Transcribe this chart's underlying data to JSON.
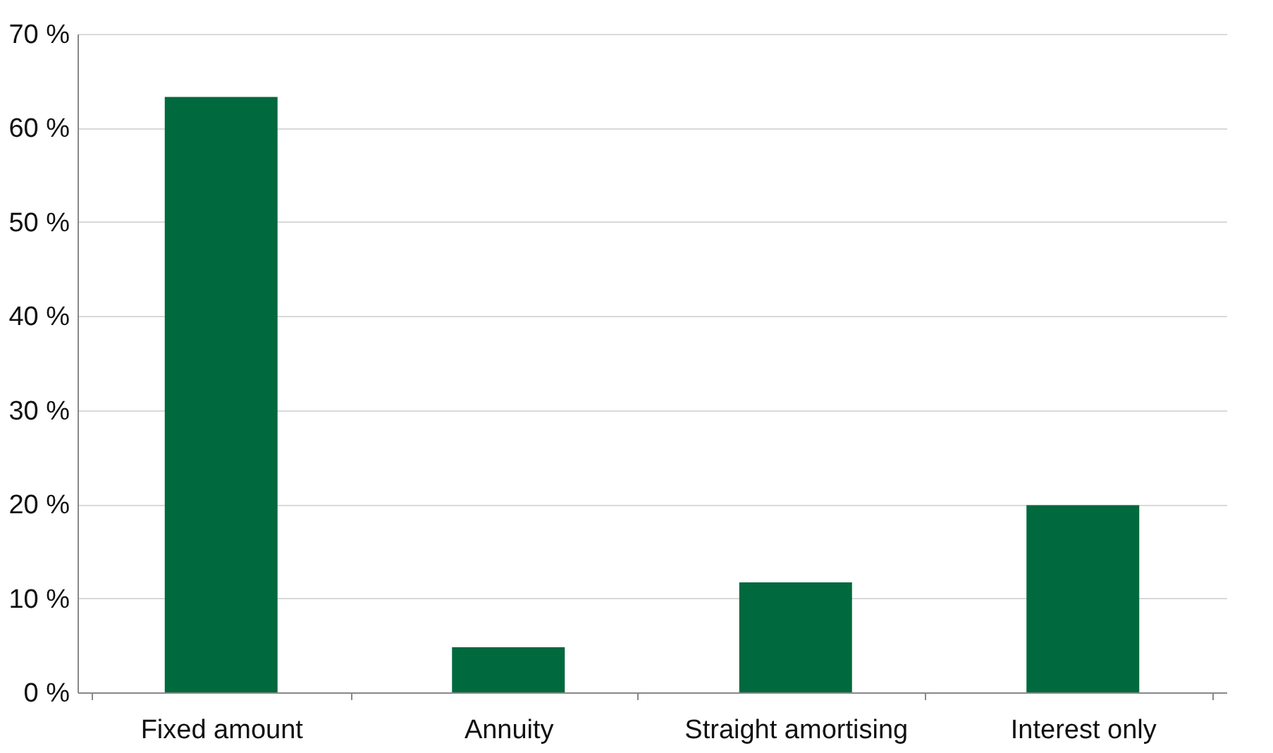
{
  "chart_data": {
    "type": "bar",
    "categories": [
      "Fixed amount",
      "Annuity",
      "Straight amortising",
      "Interest only"
    ],
    "values": [
      63.3,
      4.8,
      11.7,
      19.9
    ],
    "color": "#00693e",
    "ylim": [
      0,
      70
    ],
    "yticks": [
      {
        "value": 0,
        "label": "0 %"
      },
      {
        "value": 10,
        "label": "10 %"
      },
      {
        "value": 20,
        "label": "20 %"
      },
      {
        "value": 30,
        "label": "30 %"
      },
      {
        "value": 40,
        "label": "40 %"
      },
      {
        "value": 50,
        "label": "50 %"
      },
      {
        "value": 60,
        "label": "60 %"
      },
      {
        "value": 70,
        "label": "70 %"
      }
    ],
    "grid": "y"
  }
}
